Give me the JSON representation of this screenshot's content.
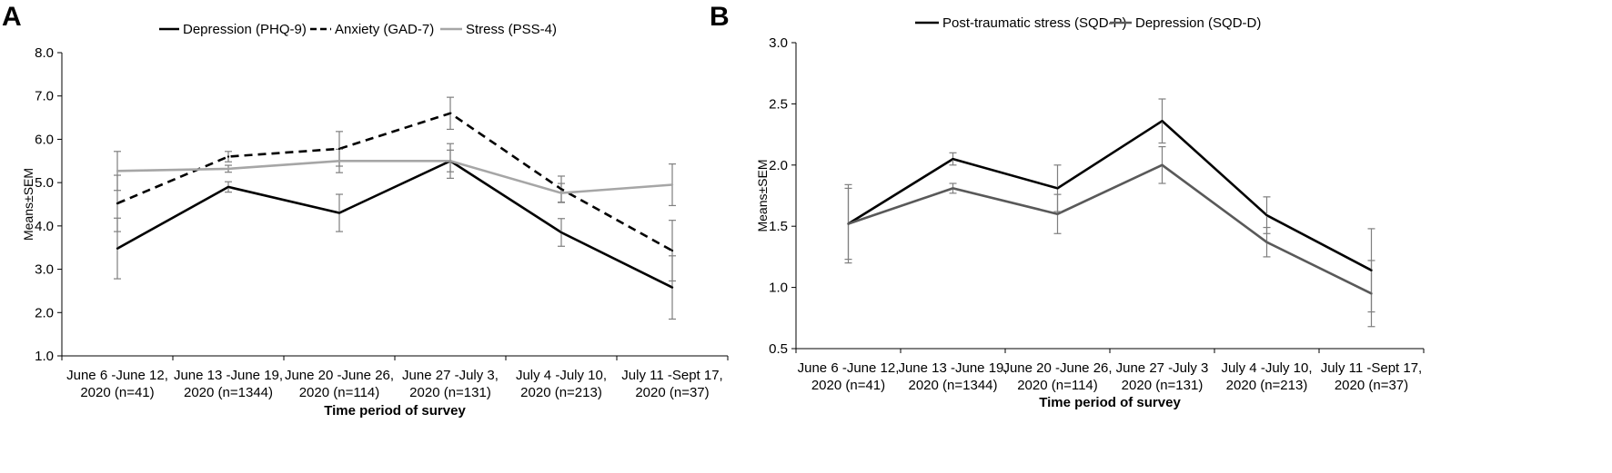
{
  "chart_data": [
    {
      "panel": "A",
      "type": "line",
      "title": "",
      "xlabel": "Time period of survey",
      "ylabel": "Means±SEM",
      "ylim": [
        1.0,
        8.0
      ],
      "yticks": [
        "1.0",
        "2.0",
        "3.0",
        "4.0",
        "5.0",
        "6.0",
        "7.0",
        "8.0"
      ],
      "grid": false,
      "legend": "top",
      "categories": [
        [
          "June 6 -June 12,",
          "2020 (n=41)"
        ],
        [
          "June 13 -June 19,",
          "2020 (n=1344)"
        ],
        [
          "June 20 -June 26,",
          "2020 (n=114)"
        ],
        [
          "June 27 -July 3,",
          "2020 (n=131)"
        ],
        [
          "July 4 -July 10,",
          "2020 (n=213)"
        ],
        [
          "July 11 -Sept 17,",
          "2020 (n=37)"
        ]
      ],
      "series": [
        {
          "name": "Depression (PHQ-9)",
          "style": "solid",
          "color": "#000000",
          "values": [
            3.48,
            4.9,
            4.3,
            5.5,
            3.85,
            2.58
          ],
          "sem": [
            0.7,
            0.12,
            0.43,
            0.4,
            0.32,
            0.73
          ]
        },
        {
          "name": "Anxiety (GAD-7)",
          "style": "dashed",
          "color": "#000000",
          "values": [
            4.52,
            5.6,
            5.78,
            6.6,
            4.85,
            3.43
          ],
          "sem": [
            0.65,
            0.12,
            0.4,
            0.37,
            0.3,
            0.7
          ]
        },
        {
          "name": "Stress (PSS-4)",
          "style": "solid",
          "color": "#a6a6a6",
          "values": [
            5.27,
            5.32,
            5.5,
            5.5,
            4.76,
            4.95
          ],
          "sem": [
            0.45,
            0.08,
            0.27,
            0.25,
            0.22,
            0.48
          ]
        }
      ]
    },
    {
      "panel": "B",
      "type": "line",
      "title": "",
      "xlabel": "Time period of survey",
      "ylabel": "Means±SEM",
      "ylim": [
        0.5,
        3.0
      ],
      "yticks": [
        "0.5",
        "1.0",
        "1.5",
        "2.0",
        "2.5",
        "3.0"
      ],
      "grid": false,
      "legend": "top",
      "categories": [
        [
          "June 6 -June 12,",
          "2020 (n=41)"
        ],
        [
          "June 13 -June 19,",
          "2020 (n=1344)"
        ],
        [
          "June 20 -June 26,",
          "2020 (n=114)"
        ],
        [
          "June 27 -July 3",
          "2020 (n=131)"
        ],
        [
          "July 4 -July 10,",
          "2020 (n=213)"
        ],
        [
          "July 11 -Sept 17,",
          "2020 (n=37)"
        ]
      ],
      "series": [
        {
          "name": "Post-traumatic stress (SQD-P)",
          "style": "solid",
          "color": "#000000",
          "values": [
            1.52,
            2.05,
            1.81,
            2.36,
            1.59,
            1.14
          ],
          "sem": [
            0.32,
            0.05,
            0.19,
            0.18,
            0.15,
            0.34
          ]
        },
        {
          "name": "Depression (SQD-D)",
          "style": "solid",
          "color": "#595959",
          "values": [
            1.52,
            1.81,
            1.6,
            2.0,
            1.37,
            0.95
          ],
          "sem": [
            0.29,
            0.04,
            0.16,
            0.15,
            0.12,
            0.27
          ]
        }
      ]
    }
  ]
}
